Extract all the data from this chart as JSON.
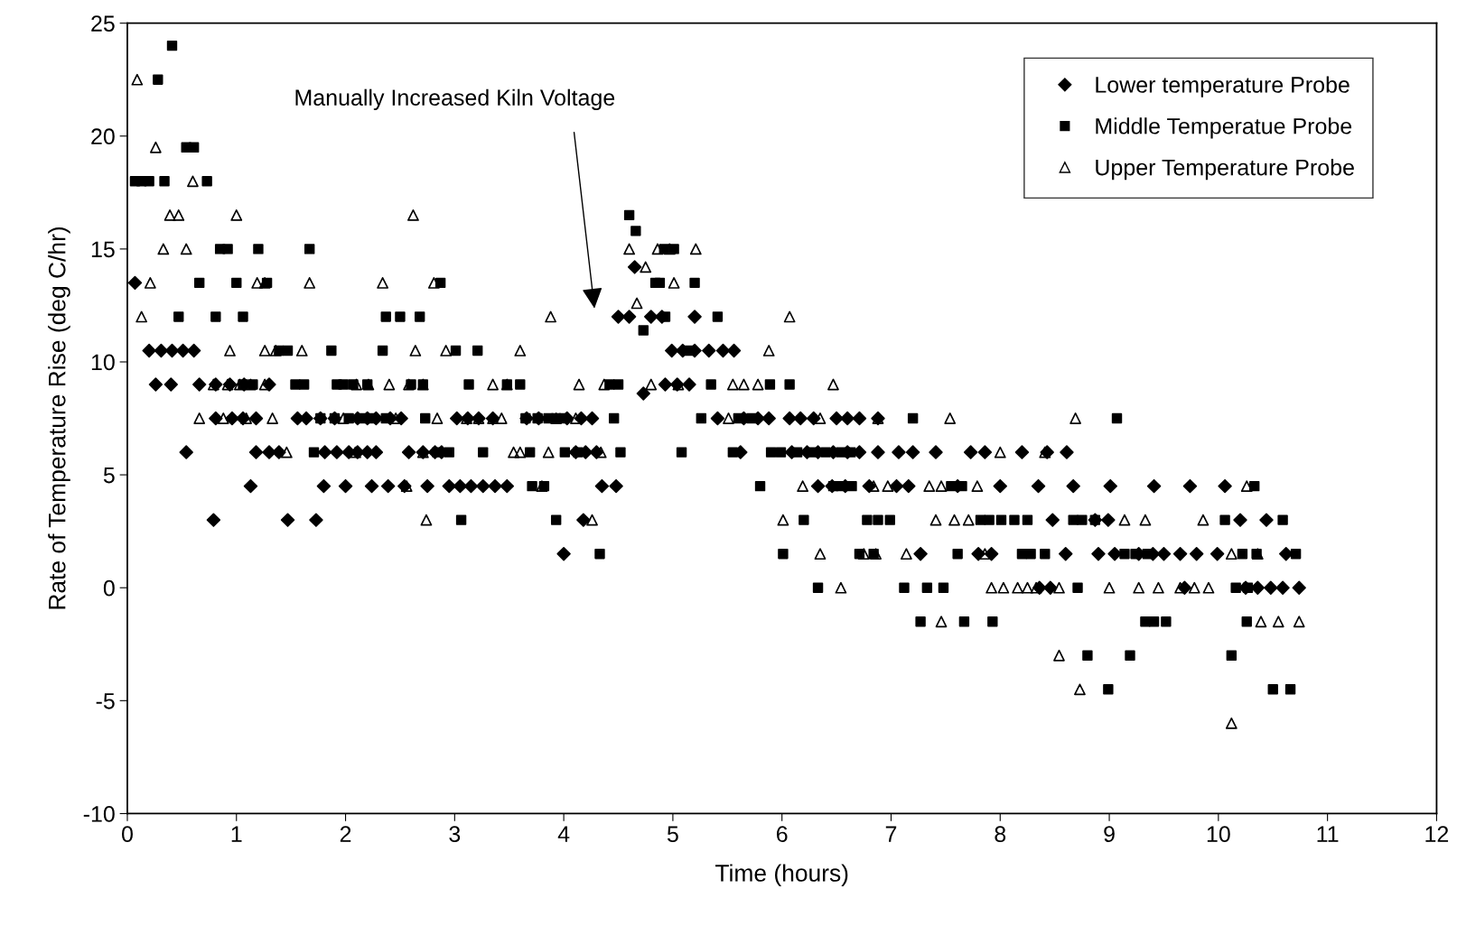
{
  "chart_data": {
    "type": "scatter",
    "xlabel": "Time (hours)",
    "ylabel": "Rate of Temperature Rise (deg C/hr)",
    "xlim": [
      0,
      12
    ],
    "xticks": [
      0,
      1,
      2,
      3,
      4,
      5,
      6,
      7,
      8,
      9,
      10,
      11,
      12
    ],
    "ylim": [
      -10,
      25
    ],
    "yticks": [
      -10,
      -5,
      0,
      5,
      10,
      15,
      20,
      25
    ],
    "grid": false,
    "legend": "top right",
    "annotations": [
      "Manually Increased Kiln Voltage"
    ],
    "series": [
      {
        "name": "Lower temperature Probe",
        "color": "#000000",
        "marker": "diamond",
        "x": [
          0.07,
          4.5,
          4.6,
          4.8,
          4.9,
          5.2,
          0.2,
          0.31,
          0.41,
          0.51,
          0.61,
          4.99,
          5.09,
          5.2,
          5.33,
          5.46,
          5.56,
          4.65,
          4.73,
          0.26,
          0.4,
          0.66,
          0.81,
          0.94,
          1.07,
          1.3,
          4.93,
          5.04,
          5.15,
          0.81,
          0.96,
          1.06,
          1.18,
          1.56,
          1.64,
          1.77,
          1.9,
          2.11,
          2.2,
          2.28,
          2.41,
          2.51,
          3.02,
          3.12,
          3.22,
          3.35,
          3.66,
          3.77,
          4.03,
          4.16,
          4.26,
          5.41,
          5.65,
          5.78,
          5.88,
          6.07,
          6.17,
          6.29,
          6.5,
          6.6,
          6.71,
          6.88,
          0.54,
          1.18,
          1.3,
          1.39,
          1.81,
          1.92,
          2.03,
          2.11,
          2.2,
          2.28,
          2.58,
          2.71,
          2.82,
          2.88,
          4.11,
          4.2,
          4.3,
          5.62,
          6.09,
          6.23,
          6.33,
          6.47,
          6.6,
          6.71,
          6.88,
          7.07,
          7.2,
          7.41,
          7.73,
          7.86,
          8.2,
          8.43,
          8.61,
          1.13,
          1.8,
          2.0,
          2.24,
          2.39,
          2.54,
          2.75,
          2.95,
          3.05,
          3.15,
          3.26,
          3.37,
          3.48,
          4.35,
          4.48,
          6.33,
          6.46,
          6.58,
          6.8,
          7.05,
          7.16,
          7.61,
          8.0,
          8.35,
          8.67,
          9.01,
          9.41,
          9.74,
          10.06,
          0.79,
          1.47,
          1.73,
          4.18,
          8.48,
          8.87,
          8.99,
          10.2,
          10.44,
          4.0,
          7.27,
          7.8,
          7.92,
          8.6,
          8.9,
          9.05,
          9.27,
          9.4,
          9.5,
          9.65,
          9.8,
          9.99,
          10.62,
          8.36,
          8.46,
          9.69,
          10.25,
          10.36,
          10.48,
          10.59,
          10.74
        ],
        "values": [
          13.5,
          12,
          12,
          12,
          12,
          12,
          10.5,
          10.5,
          10.5,
          10.5,
          10.5,
          10.5,
          10.5,
          10.5,
          10.5,
          10.5,
          10.5,
          14.2,
          8.6,
          9,
          9,
          9,
          9,
          9,
          9,
          9,
          9,
          9,
          9,
          7.5,
          7.5,
          7.5,
          7.5,
          7.5,
          7.5,
          7.5,
          7.5,
          7.5,
          7.5,
          7.5,
          7.5,
          7.5,
          7.5,
          7.5,
          7.5,
          7.5,
          7.5,
          7.5,
          7.5,
          7.5,
          7.5,
          7.5,
          7.5,
          7.5,
          7.5,
          7.5,
          7.5,
          7.5,
          7.5,
          7.5,
          7.5,
          7.5,
          6,
          6,
          6,
          6,
          6,
          6,
          6,
          6,
          6,
          6,
          6,
          6,
          6,
          6,
          6,
          6,
          6,
          6,
          6,
          6,
          6,
          6,
          6,
          6,
          6,
          6,
          6,
          6,
          6,
          6,
          6,
          6,
          6,
          4.5,
          4.5,
          4.5,
          4.5,
          4.5,
          4.5,
          4.5,
          4.5,
          4.5,
          4.5,
          4.5,
          4.5,
          4.5,
          4.5,
          4.5,
          4.5,
          4.5,
          4.5,
          4.5,
          4.5,
          4.5,
          4.5,
          4.5,
          4.5,
          4.5,
          4.5,
          4.5,
          4.5,
          4.5,
          3,
          3,
          3,
          3,
          3,
          3,
          3,
          3,
          3,
          1.5,
          1.5,
          1.5,
          1.5,
          1.5,
          1.5,
          1.5,
          1.5,
          1.5,
          1.5,
          1.5,
          1.5,
          1.5,
          1.5,
          0,
          0,
          0,
          0,
          0,
          0,
          0,
          0
        ]
      },
      {
        "name": "Middle Temperatue Probe",
        "color": "#000000",
        "marker": "square",
        "x": [
          0.41,
          0.28,
          0.54,
          0.61,
          0.07,
          0.13,
          0.2,
          0.34,
          0.73,
          4.6,
          4.66,
          0.85,
          0.92,
          1.2,
          1.67,
          4.92,
          5.01,
          0.66,
          1.0,
          1.28,
          2.87,
          4.84,
          4.88,
          5.2,
          0.47,
          0.81,
          1.06,
          2.37,
          2.5,
          2.68,
          4.93,
          5.41,
          4.73,
          1.39,
          1.47,
          1.87,
          2.34,
          3.01,
          3.21,
          5.14,
          1.06,
          1.15,
          1.54,
          1.62,
          1.92,
          1.98,
          2.07,
          2.2,
          2.6,
          2.71,
          3.13,
          3.48,
          3.6,
          4.42,
          4.5,
          5.35,
          5.89,
          6.07,
          1.77,
          1.9,
          2.03,
          2.15,
          2.24,
          2.37,
          2.73,
          3.65,
          3.76,
          3.86,
          3.93,
          4.0,
          4.46,
          5.26,
          5.6,
          5.72,
          7.2,
          9.07,
          1.71,
          2.84,
          2.95,
          3.26,
          3.69,
          4.01,
          4.13,
          4.52,
          5.08,
          5.55,
          5.9,
          5.99,
          6.14,
          6.27,
          6.4,
          6.54,
          6.63,
          3.71,
          3.82,
          5.8,
          6.47,
          6.54,
          6.64,
          7.55,
          7.65,
          10.33,
          3.06,
          3.93,
          6.2,
          6.78,
          6.88,
          6.99,
          7.82,
          7.9,
          8.01,
          8.13,
          8.25,
          8.67,
          8.75,
          8.87,
          10.06,
          10.59,
          4.33,
          6.01,
          6.71,
          6.84,
          7.61,
          8.2,
          8.28,
          8.41,
          9.14,
          9.24,
          9.35,
          10.22,
          10.35,
          10.71,
          6.33,
          7.12,
          7.33,
          7.48,
          8.71,
          10.16,
          10.27,
          7.27,
          7.67,
          7.93,
          9.33,
          9.41,
          9.52,
          10.26,
          8.8,
          9.19,
          10.12,
          8.99,
          10.5,
          10.66
        ],
        "values": [
          24,
          22.5,
          19.5,
          19.5,
          18,
          18,
          18,
          18,
          18,
          16.5,
          15.8,
          15,
          15,
          15,
          15,
          15,
          15,
          13.5,
          13.5,
          13.5,
          13.5,
          13.5,
          13.5,
          13.5,
          12,
          12,
          12,
          12,
          12,
          12,
          12,
          12,
          11.4,
          10.5,
          10.5,
          10.5,
          10.5,
          10.5,
          10.5,
          10.5,
          9,
          9,
          9,
          9,
          9,
          9,
          9,
          9,
          9,
          9,
          9,
          9,
          9,
          9,
          9,
          9,
          9,
          9,
          7.5,
          7.5,
          7.5,
          7.5,
          7.5,
          7.5,
          7.5,
          7.5,
          7.5,
          7.5,
          7.5,
          7.5,
          7.5,
          7.5,
          7.5,
          7.5,
          7.5,
          7.5,
          6,
          6,
          6,
          6,
          6,
          6,
          6,
          6,
          6,
          6,
          6,
          6,
          6,
          6,
          6,
          6,
          6,
          4.5,
          4.5,
          4.5,
          4.5,
          4.5,
          4.5,
          4.5,
          4.5,
          4.5,
          3,
          3,
          3,
          3,
          3,
          3,
          3,
          3,
          3,
          3,
          3,
          3,
          3,
          3,
          3,
          3,
          1.5,
          1.5,
          1.5,
          1.5,
          1.5,
          1.5,
          1.5,
          1.5,
          1.5,
          1.5,
          1.5,
          1.5,
          1.5,
          1.5,
          0,
          0,
          0,
          0,
          0,
          0,
          0,
          -1.5,
          -1.5,
          -1.5,
          -1.5,
          -1.5,
          -1.5,
          -1.5,
          -3,
          -3,
          -3,
          -4.5,
          -4.5,
          -4.5
        ]
      },
      {
        "name": "Upper Temperature Probe",
        "color": "#000000",
        "marker": "triangle",
        "x": [
          0.09,
          0.26,
          0.6,
          0.39,
          0.47,
          1.0,
          2.62,
          0.33,
          0.54,
          4.6,
          4.86,
          4.97,
          5.21,
          4.75,
          0.21,
          1.19,
          1.26,
          1.67,
          2.34,
          2.81,
          5.01,
          4.67,
          0.13,
          3.88,
          6.07,
          0.94,
          1.26,
          1.36,
          1.6,
          2.64,
          2.92,
          3.6,
          5.88,
          0.79,
          0.92,
          1.03,
          1.13,
          1.26,
          2.1,
          2.21,
          2.4,
          2.58,
          2.71,
          3.35,
          3.48,
          4.14,
          4.37,
          4.8,
          5.05,
          5.55,
          5.65,
          5.78,
          6.47,
          0.66,
          0.88,
          1.09,
          1.33,
          1.98,
          2.46,
          2.84,
          3.11,
          3.22,
          3.35,
          3.43,
          3.93,
          4.11,
          5.51,
          6.35,
          6.88,
          7.54,
          8.69,
          1.46,
          2.09,
          2.71,
          3.54,
          3.6,
          3.86,
          4.34,
          8.0,
          8.41,
          2.56,
          3.8,
          6.19,
          6.84,
          6.97,
          7.35,
          7.46,
          7.79,
          10.26,
          2.74,
          4.26,
          6.01,
          7.41,
          7.58,
          7.71,
          9.14,
          9.33,
          9.86,
          6.35,
          6.75,
          6.86,
          7.14,
          7.86,
          10.12,
          10.36,
          6.54,
          7.92,
          8.03,
          8.16,
          8.25,
          8.33,
          8.54,
          9.0,
          9.27,
          9.45,
          9.65,
          9.78,
          9.91,
          7.46,
          10.39,
          10.55,
          10.74,
          8.54,
          8.73,
          10.12
        ],
        "values": [
          22.5,
          19.5,
          18,
          16.5,
          16.5,
          16.5,
          16.5,
          15,
          15,
          15,
          15,
          15,
          15,
          14.2,
          13.5,
          13.5,
          13.5,
          13.5,
          13.5,
          13.5,
          13.5,
          12.6,
          12,
          12,
          12,
          10.5,
          10.5,
          10.5,
          10.5,
          10.5,
          10.5,
          10.5,
          10.5,
          9,
          9,
          9,
          9,
          9,
          9,
          9,
          9,
          9,
          9,
          9,
          9,
          9,
          9,
          9,
          9,
          9,
          9,
          9,
          9,
          7.5,
          7.5,
          7.5,
          7.5,
          7.5,
          7.5,
          7.5,
          7.5,
          7.5,
          7.5,
          7.5,
          7.5,
          7.5,
          7.5,
          7.5,
          7.5,
          7.5,
          7.5,
          6,
          6,
          6,
          6,
          6,
          6,
          6,
          6,
          6,
          4.5,
          4.5,
          4.5,
          4.5,
          4.5,
          4.5,
          4.5,
          4.5,
          4.5,
          3,
          3,
          3,
          3,
          3,
          3,
          3,
          3,
          3,
          1.5,
          1.5,
          1.5,
          1.5,
          1.5,
          1.5,
          1.5,
          0,
          0,
          0,
          0,
          0,
          0,
          0,
          0,
          0,
          0,
          0,
          0,
          0,
          -1.5,
          -1.5,
          -1.5,
          -1.5,
          -3,
          -4.5,
          -6
        ]
      }
    ]
  }
}
